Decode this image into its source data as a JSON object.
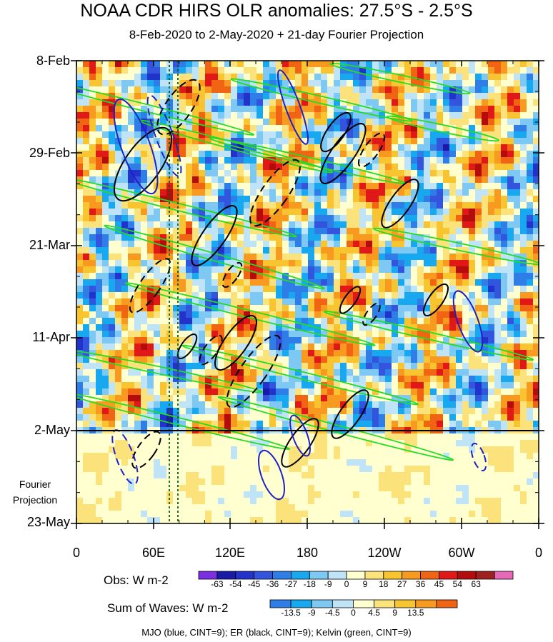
{
  "chart_data": {
    "type": "heatmap",
    "title": "NOAA CDR HIRS OLR anomalies: 27.5°S - 2.5°S",
    "subtitle": "8-Feb-2020 to 2-May-2020 + 21-day Fourier Projection",
    "y_ticks": [
      "8-Feb",
      "29-Feb",
      "21-Mar",
      "11-Apr",
      "2-May",
      "23-May"
    ],
    "y_note_lines": [
      "Fourier",
      "Projection"
    ],
    "x_ticks": [
      "0",
      "60E",
      "120E",
      "180",
      "120W",
      "60W",
      "0"
    ],
    "obs_colorbar": {
      "title": "Obs: W m-2",
      "ticks": [
        "-63",
        "-54",
        "-45",
        "-36",
        "-27",
        "-18",
        "-9",
        "0",
        "9",
        "18",
        "27",
        "36",
        "45",
        "54",
        "63"
      ],
      "colors": [
        "#7b2fe0",
        "#1a1aa8",
        "#2233cc",
        "#3355dd",
        "#2f7ee8",
        "#18a8f0",
        "#7ec8f4",
        "#bfe4f8",
        "#ffffd0",
        "#fbe27a",
        "#f8c430",
        "#f89a20",
        "#f06414",
        "#e01818",
        "#b40c0c",
        "#a02020",
        "#e868b8"
      ]
    },
    "waves_colorbar": {
      "title": "Sum of Waves: W m-2",
      "ticks": [
        "-13.5",
        "-9",
        "-4.5",
        "0",
        "4.5",
        "9",
        "13.5"
      ],
      "colors": [
        "#2f7ee8",
        "#18a8f0",
        "#7ec8f4",
        "#bfe4f8",
        "#ffffd0",
        "#fbe27a",
        "#f8c430",
        "#f89a20",
        "#f06414"
      ]
    },
    "footnote": "MJO (blue, CINT=9); ER (black, CINT=9); Kelvin (green, CINT=9)",
    "series_colors": {
      "mjo": "#2020c8",
      "er": "#000000",
      "kelvin": "#22dd22"
    }
  }
}
